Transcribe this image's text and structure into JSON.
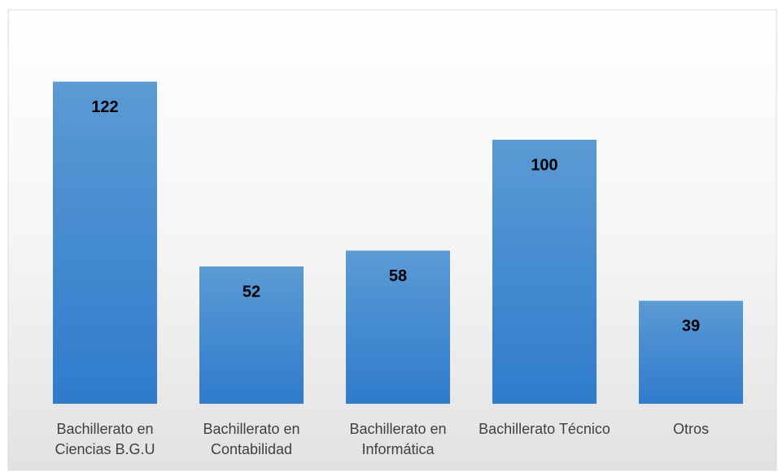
{
  "chart_data": {
    "type": "bar",
    "categories": [
      "Bachillerato en Ciencias B.G.U",
      "Bachillerato en Contabilidad",
      "Bachillerato en Informática",
      "Bachillerato Técnico",
      "Otros"
    ],
    "values": [
      122,
      52,
      58,
      100,
      39
    ],
    "color": "#4a8fd6",
    "ylim": [
      0,
      140
    ]
  }
}
